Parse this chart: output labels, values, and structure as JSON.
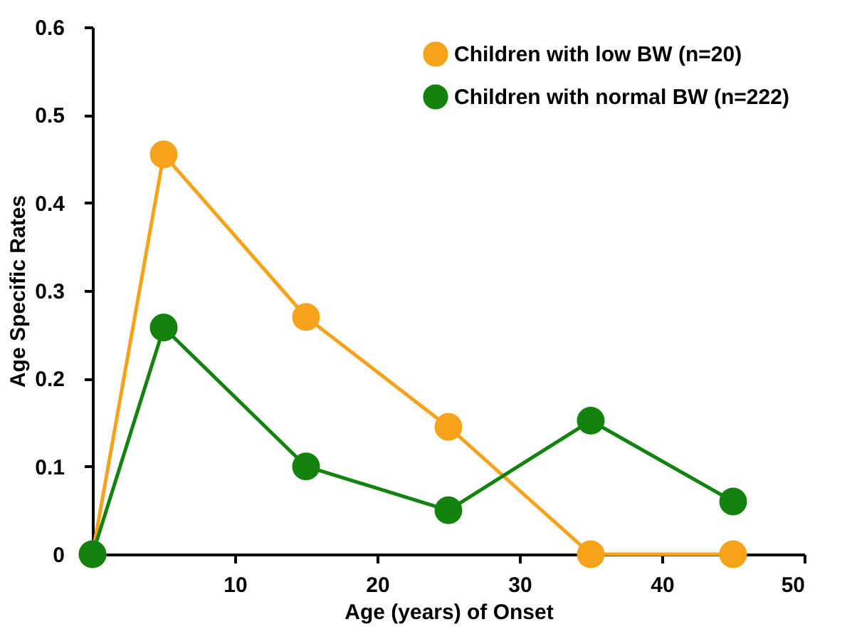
{
  "chart_data": {
    "type": "line",
    "xlabel": "Age (years) of Onset",
    "ylabel": "Age Specific Rates",
    "xlim": [
      0,
      50
    ],
    "xticks": [
      10,
      20,
      30,
      40,
      50
    ],
    "ylim": [
      0,
      0.6
    ],
    "yticks": [
      0,
      0.1,
      0.2,
      0.3,
      0.4,
      0.5,
      0.6
    ],
    "x": [
      0,
      5,
      15,
      25,
      35,
      45
    ],
    "series": [
      {
        "name": "Children with low BW (n=20)",
        "color": "#f7a21b",
        "values": [
          0,
          0.455,
          0.27,
          0.145,
          0,
          0
        ]
      },
      {
        "name": "Children with normal BW (n=222)",
        "color": "#13820f",
        "values": [
          0,
          0.258,
          0.1,
          0.05,
          0.152,
          0.06
        ]
      }
    ],
    "marker": "circle",
    "line_style": "solid",
    "grid": false,
    "legend": "top right"
  }
}
